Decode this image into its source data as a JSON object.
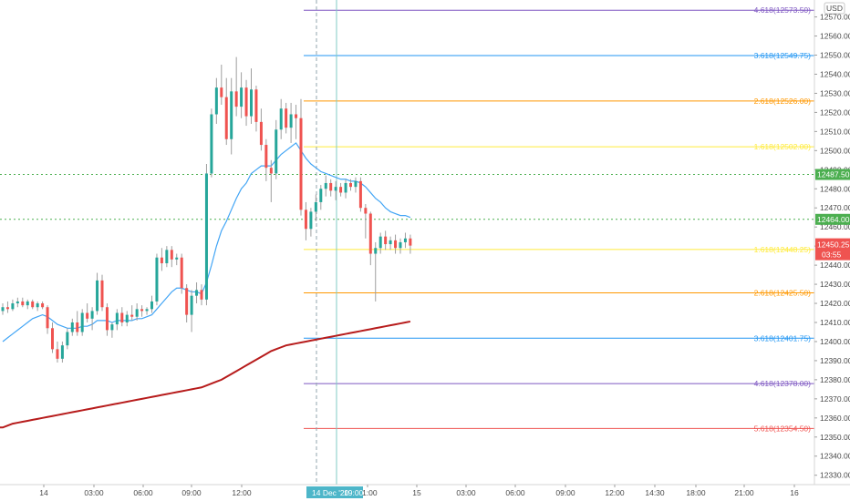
{
  "currency": "USD",
  "chart_data": {
    "type": "candlestick",
    "y_ticks": [
      "12330.00",
      "12340.00",
      "12350.00",
      "12360.00",
      "12370.00",
      "12380.00",
      "12390.00",
      "12400.00",
      "12410.00",
      "12420.00",
      "12430.00",
      "12440.00",
      "12450.00",
      "12460.00",
      "12470.00",
      "12480.00",
      "12490.00",
      "12500.00",
      "12510.00",
      "12520.00",
      "12530.00",
      "12540.00",
      "12550.00",
      "12560.00",
      "12570.00"
    ],
    "ylim": [
      12327,
      12576
    ],
    "x_ticks": [
      "14",
      "03:00",
      "06:00",
      "09:00",
      "12:00",
      "21:00",
      "15",
      "03:00",
      "06:00",
      "09:00",
      "12:00",
      "14:30",
      "18:00",
      "21:00",
      "16"
    ],
    "crosshair_label": "14 Dec '20",
    "crosshair_time": "19:00",
    "fib_levels": [
      {
        "label": "4.618(12573.50)",
        "price": 12573.5,
        "color": "#7e57c2"
      },
      {
        "label": "3.618(12549.75)",
        "price": 12549.75,
        "color": "#2196f3"
      },
      {
        "label": "2.618(12526.00)",
        "price": 12526.0,
        "color": "#ff9800"
      },
      {
        "label": "1.618(12502.00)",
        "price": 12502.0,
        "color": "#ffeb3b"
      },
      {
        "label": "1.618(12448.25)",
        "price": 12448.25,
        "color": "#ffeb3b"
      },
      {
        "label": "2.618(12425.50)",
        "price": 12425.5,
        "color": "#ff9800"
      },
      {
        "label": "3.618(12401.75)",
        "price": 12401.75,
        "color": "#2196f3"
      },
      {
        "label": "4.618(12378.00)",
        "price": 12378.0,
        "color": "#7e57c2"
      },
      {
        "label": "5.618(12354.50)",
        "price": 12354.5,
        "color": "#ef5350"
      }
    ],
    "horizontal_lines": [
      {
        "price": 12487.5,
        "label": "12487.50",
        "color": "#4caf50"
      },
      {
        "price": 12464.0,
        "label": "12464.00",
        "color": "#4caf50"
      }
    ],
    "last_price": {
      "label": "12450.25",
      "countdown": "03:55",
      "color": "#ef5350"
    },
    "candles": [
      {
        "o": 12416,
        "h": 12420,
        "l": 12414,
        "c": 12418
      },
      {
        "o": 12418,
        "h": 12421,
        "l": 12415,
        "c": 12417
      },
      {
        "o": 12417,
        "h": 12422,
        "l": 12416,
        "c": 12420
      },
      {
        "o": 12420,
        "h": 12423,
        "l": 12418,
        "c": 12421
      },
      {
        "o": 12421,
        "h": 12423,
        "l": 12418,
        "c": 12419
      },
      {
        "o": 12419,
        "h": 12422,
        "l": 12417,
        "c": 12421
      },
      {
        "o": 12421,
        "h": 12422,
        "l": 12417,
        "c": 12418
      },
      {
        "o": 12418,
        "h": 12421,
        "l": 12416,
        "c": 12420
      },
      {
        "o": 12420,
        "h": 12421,
        "l": 12417,
        "c": 12418
      },
      {
        "o": 12418,
        "h": 12419,
        "l": 12404,
        "c": 12407
      },
      {
        "o": 12407,
        "h": 12410,
        "l": 12394,
        "c": 12396
      },
      {
        "o": 12396,
        "h": 12400,
        "l": 12389,
        "c": 12391
      },
      {
        "o": 12391,
        "h": 12400,
        "l": 12389,
        "c": 12398
      },
      {
        "o": 12398,
        "h": 12407,
        "l": 12396,
        "c": 12405
      },
      {
        "o": 12405,
        "h": 12412,
        "l": 12403,
        "c": 12410
      },
      {
        "o": 12410,
        "h": 12416,
        "l": 12403,
        "c": 12405
      },
      {
        "o": 12405,
        "h": 12417,
        "l": 12403,
        "c": 12415
      },
      {
        "o": 12415,
        "h": 12420,
        "l": 12410,
        "c": 12412
      },
      {
        "o": 12412,
        "h": 12418,
        "l": 12406,
        "c": 12416
      },
      {
        "o": 12416,
        "h": 12436,
        "l": 12414,
        "c": 12432
      },
      {
        "o": 12432,
        "h": 12435,
        "l": 12416,
        "c": 12418
      },
      {
        "o": 12418,
        "h": 12420,
        "l": 12403,
        "c": 12406
      },
      {
        "o": 12406,
        "h": 12410,
        "l": 12402,
        "c": 12409
      },
      {
        "o": 12409,
        "h": 12417,
        "l": 12406,
        "c": 12415
      },
      {
        "o": 12415,
        "h": 12418,
        "l": 12408,
        "c": 12410
      },
      {
        "o": 12410,
        "h": 12416,
        "l": 12408,
        "c": 12414
      },
      {
        "o": 12414,
        "h": 12419,
        "l": 12411,
        "c": 12413
      },
      {
        "o": 12413,
        "h": 12420,
        "l": 12411,
        "c": 12417
      },
      {
        "o": 12417,
        "h": 12419,
        "l": 12413,
        "c": 12416
      },
      {
        "o": 12416,
        "h": 12418,
        "l": 12414,
        "c": 12417
      },
      {
        "o": 12417,
        "h": 12424,
        "l": 12415,
        "c": 12421
      },
      {
        "o": 12421,
        "h": 12446,
        "l": 12419,
        "c": 12444
      },
      {
        "o": 12444,
        "h": 12449,
        "l": 12437,
        "c": 12441
      },
      {
        "o": 12441,
        "h": 12450,
        "l": 12439,
        "c": 12448
      },
      {
        "o": 12448,
        "h": 12450,
        "l": 12439,
        "c": 12443
      },
      {
        "o": 12443,
        "h": 12446,
        "l": 12440,
        "c": 12444
      },
      {
        "o": 12444,
        "h": 12446,
        "l": 12425,
        "c": 12428
      },
      {
        "o": 12428,
        "h": 12430,
        "l": 12410,
        "c": 12414
      },
      {
        "o": 12414,
        "h": 12427,
        "l": 12405,
        "c": 12424
      },
      {
        "o": 12424,
        "h": 12431,
        "l": 12420,
        "c": 12427
      },
      {
        "o": 12427,
        "h": 12430,
        "l": 12419,
        "c": 12422
      },
      {
        "o": 12422,
        "h": 12493,
        "l": 12419,
        "c": 12488
      },
      {
        "o": 12488,
        "h": 12522,
        "l": 12486,
        "c": 12519
      },
      {
        "o": 12519,
        "h": 12538,
        "l": 12514,
        "c": 12533
      },
      {
        "o": 12533,
        "h": 12545,
        "l": 12524,
        "c": 12528
      },
      {
        "o": 12528,
        "h": 12538,
        "l": 12503,
        "c": 12506
      },
      {
        "o": 12506,
        "h": 12538,
        "l": 12498,
        "c": 12531
      },
      {
        "o": 12531,
        "h": 12549,
        "l": 12518,
        "c": 12523
      },
      {
        "o": 12523,
        "h": 12541,
        "l": 12517,
        "c": 12533
      },
      {
        "o": 12533,
        "h": 12537,
        "l": 12513,
        "c": 12518
      },
      {
        "o": 12518,
        "h": 12543,
        "l": 12514,
        "c": 12532
      },
      {
        "o": 12532,
        "h": 12534,
        "l": 12510,
        "c": 12515
      },
      {
        "o": 12515,
        "h": 12522,
        "l": 12500,
        "c": 12503
      },
      {
        "o": 12503,
        "h": 12506,
        "l": 12484,
        "c": 12491
      },
      {
        "o": 12491,
        "h": 12495,
        "l": 12473,
        "c": 12488
      },
      {
        "o": 12488,
        "h": 12516,
        "l": 12485,
        "c": 12511
      },
      {
        "o": 12511,
        "h": 12527,
        "l": 12506,
        "c": 12522
      },
      {
        "o": 12522,
        "h": 12525,
        "l": 12509,
        "c": 12512
      },
      {
        "o": 12512,
        "h": 12525,
        "l": 12504,
        "c": 12519
      },
      {
        "o": 12519,
        "h": 12524,
        "l": 12506,
        "c": 12517
      },
      {
        "o": 12517,
        "h": 12527,
        "l": 12466,
        "c": 12469
      },
      {
        "o": 12469,
        "h": 12473,
        "l": 12453,
        "c": 12459
      },
      {
        "o": 12459,
        "h": 12470,
        "l": 12455,
        "c": 12468
      },
      {
        "o": 12468,
        "h": 12477,
        "l": 12463,
        "c": 12473
      },
      {
        "o": 12473,
        "h": 12482,
        "l": 12469,
        "c": 12480
      },
      {
        "o": 12480,
        "h": 12487,
        "l": 12476,
        "c": 12483
      },
      {
        "o": 12483,
        "h": 12485,
        "l": 12476,
        "c": 12479
      },
      {
        "o": 12479,
        "h": 12484,
        "l": 12474,
        "c": 12481
      },
      {
        "o": 12481,
        "h": 12483,
        "l": 12476,
        "c": 12478
      },
      {
        "o": 12478,
        "h": 12485,
        "l": 12475,
        "c": 12483
      },
      {
        "o": 12483,
        "h": 12485,
        "l": 12479,
        "c": 12481
      },
      {
        "o": 12481,
        "h": 12486,
        "l": 12478,
        "c": 12484
      },
      {
        "o": 12484,
        "h": 12486,
        "l": 12468,
        "c": 12470
      },
      {
        "o": 12470,
        "h": 12472,
        "l": 12454,
        "c": 12467
      },
      {
        "o": 12467,
        "h": 12468,
        "l": 12440,
        "c": 12446
      },
      {
        "o": 12446,
        "h": 12452,
        "l": 12421,
        "c": 12449
      },
      {
        "o": 12449,
        "h": 12457,
        "l": 12446,
        "c": 12455
      },
      {
        "o": 12455,
        "h": 12458,
        "l": 12448,
        "c": 12451
      },
      {
        "o": 12451,
        "h": 12455,
        "l": 12448,
        "c": 12453
      },
      {
        "o": 12453,
        "h": 12456,
        "l": 12446,
        "c": 12449
      },
      {
        "o": 12449,
        "h": 12454,
        "l": 12446,
        "c": 12452
      },
      {
        "o": 12452,
        "h": 12457,
        "l": 12449,
        "c": 12454
      },
      {
        "o": 12454,
        "h": 12456,
        "l": 12446,
        "c": 12450.25
      }
    ],
    "ema_blue": [
      12400,
      12402,
      12404,
      12406,
      12408,
      12410,
      12412,
      12413,
      12414,
      12413,
      12411,
      12409,
      12408,
      12407,
      12407,
      12407,
      12408,
      12408,
      12409,
      12411,
      12411,
      12411,
      12410,
      12411,
      12411,
      12411,
      12411,
      12412,
      12412,
      12413,
      12414,
      12417,
      12420,
      12423,
      12426,
      12428,
      12428,
      12427,
      12426,
      12426,
      12425,
      12431,
      12440,
      12450,
      12458,
      12463,
      12469,
      12475,
      12480,
      12483,
      12488,
      12490,
      12492,
      12492,
      12492,
      12495,
      12498,
      12500,
      12502,
      12504,
      12500,
      12496,
      12493,
      12491,
      12489,
      12488,
      12487,
      12486,
      12485,
      12485,
      12484,
      12484,
      12483,
      12481,
      12478,
      12475,
      12473,
      12470,
      12468,
      12467,
      12466,
      12466,
      12465
    ],
    "ma_red": [
      12355,
      12356,
      12357,
      12357.5,
      12358,
      12358.5,
      12359,
      12359.5,
      12360,
      12360.5,
      12361,
      12361.5,
      12362,
      12362.5,
      12363,
      12363.5,
      12364,
      12364.5,
      12365,
      12365.5,
      12366,
      12366.5,
      12367,
      12367.5,
      12368,
      12368.5,
      12369,
      12369.5,
      12370,
      12370.5,
      12371,
      12371.5,
      12372,
      12372.5,
      12373,
      12373.5,
      12374,
      12374.5,
      12375,
      12375.5,
      12376,
      12377,
      12378,
      12379,
      12380,
      12381.5,
      12383,
      12384.5,
      12386,
      12387.5,
      12389,
      12390.5,
      12392,
      12393.5,
      12395,
      12396,
      12397,
      12398,
      12398.5,
      12399,
      12399.5,
      12400,
      12400.5,
      12401,
      12401.5,
      12402,
      12402.5,
      12403,
      12403.5,
      12404,
      12404.5,
      12405,
      12405.5,
      12406,
      12406.5,
      12407,
      12407.5,
      12408,
      12408.5,
      12409,
      12409.5,
      12410,
      12410.5
    ]
  }
}
